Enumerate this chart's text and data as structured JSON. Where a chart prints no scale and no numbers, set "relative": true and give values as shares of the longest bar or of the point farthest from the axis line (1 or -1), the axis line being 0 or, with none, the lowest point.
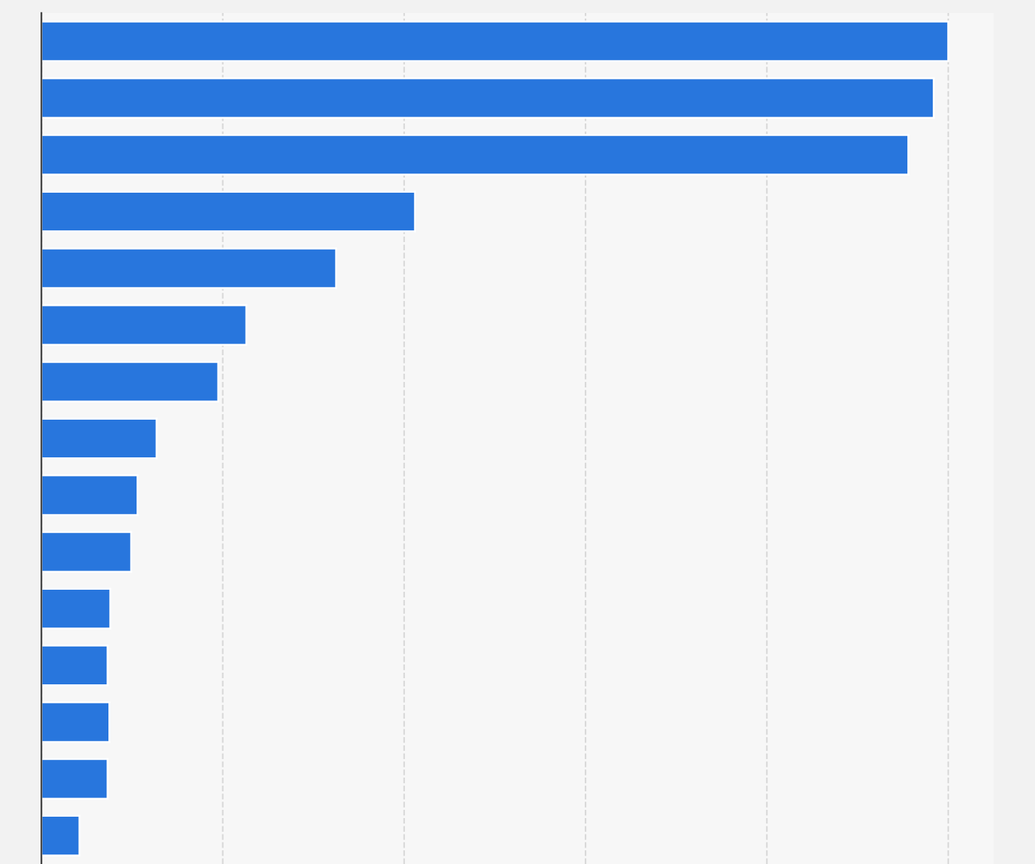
{
  "chart_data": {
    "type": "bar",
    "orientation": "horizontal",
    "relative": true,
    "grid": "x",
    "tick_labels": false,
    "color": "#2876dd",
    "categories": [
      null,
      null,
      null,
      null,
      null,
      null,
      null,
      null,
      null,
      null,
      null,
      null,
      null,
      null,
      null
    ],
    "values": [
      1,
      0.984,
      0.956,
      0.412,
      0.325,
      0.226,
      0.195,
      0.127,
      0.106,
      0.099,
      0.076,
      0.073,
      0.075,
      0.073,
      0.042
    ]
  }
}
